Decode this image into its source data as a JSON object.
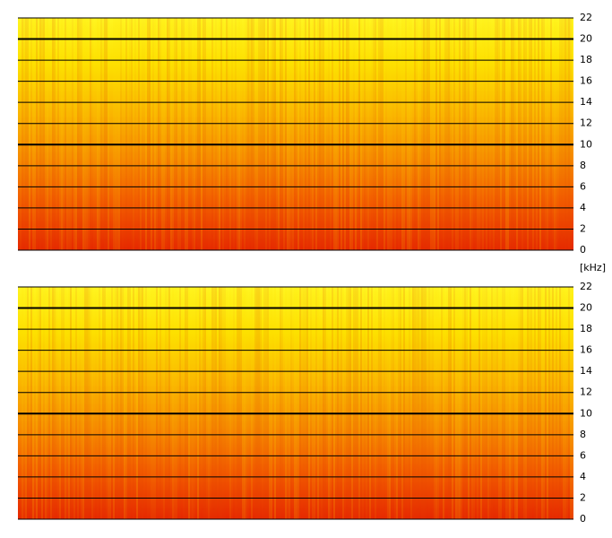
{
  "chart_data": [
    {
      "type": "spectrogram",
      "ylabel": "[kHz]",
      "ylim": [
        0,
        22
      ],
      "yticks": [
        0,
        2,
        4,
        6,
        8,
        10,
        12,
        14,
        16,
        18,
        20,
        22
      ],
      "major_yticks": [
        10,
        20
      ],
      "grid": true,
      "colormap": [
        "#e62800",
        "#f25a00",
        "#f68c00",
        "#fab800",
        "#fde000",
        "#fff520"
      ]
    },
    {
      "type": "spectrogram",
      "ylim": [
        0,
        22
      ],
      "yticks": [
        0,
        2,
        4,
        6,
        8,
        10,
        12,
        14,
        16,
        18,
        20,
        22
      ],
      "major_yticks": [
        10,
        20
      ],
      "grid": true,
      "colormap": [
        "#e62800",
        "#f25a00",
        "#f68c00",
        "#fab800",
        "#fde000",
        "#fff520"
      ]
    }
  ]
}
